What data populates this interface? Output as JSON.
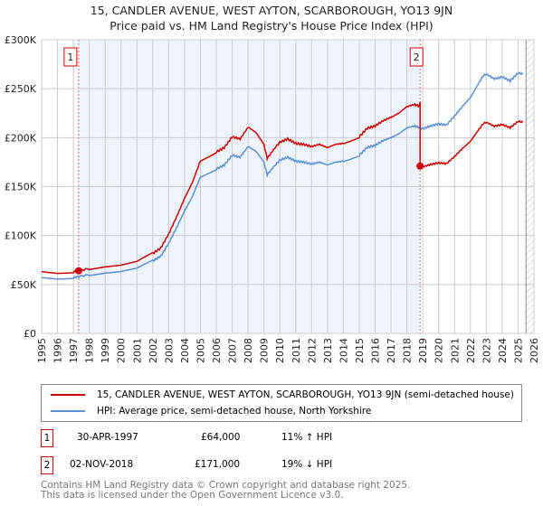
{
  "chart_data": {
    "type": "line",
    "title": "15, CANDLER AVENUE, WEST AYTON, SCARBOROUGH, YO13 9JN",
    "subtitle": "Price paid vs. HM Land Registry's House Price Index (HPI)",
    "xlim": [
      1995,
      2026
    ],
    "ylim": [
      0,
      300000
    ],
    "x_ticks": [
      "1995",
      "1996",
      "1997",
      "1998",
      "1999",
      "2000",
      "2001",
      "2002",
      "2003",
      "2004",
      "2005",
      "2006",
      "2007",
      "2008",
      "2009",
      "2010",
      "2011",
      "2012",
      "2013",
      "2014",
      "2015",
      "2016",
      "2017",
      "2018",
      "2019",
      "2020",
      "2021",
      "2022",
      "2023",
      "2024",
      "2025",
      "2026"
    ],
    "y_ticks": [
      {
        "v": 0,
        "label": "£0"
      },
      {
        "v": 50000,
        "label": "£50K"
      },
      {
        "v": 100000,
        "label": "£100K"
      },
      {
        "v": 150000,
        "label": "£150K"
      },
      {
        "v": 200000,
        "label": "£200K"
      },
      {
        "v": 250000,
        "label": "£250K"
      },
      {
        "v": 300000,
        "label": "£300K"
      }
    ],
    "grid": true,
    "hpi_series": {
      "name": "HPI: Average price, semi-detached house, North Yorkshire",
      "color": "#5b8fd4",
      "x": [
        1995,
        1996,
        1997,
        1997.33,
        1998,
        1999,
        2000,
        2001,
        2002,
        2002.5,
        2003,
        2003.5,
        2004,
        2004.5,
        2005,
        2006,
        2006.5,
        2007,
        2007.5,
        2008,
        2008.5,
        2009,
        2009.2,
        2009.7,
        2010,
        2010.5,
        2011,
        2011.5,
        2012,
        2012.5,
        2013,
        2013.5,
        2014,
        2015,
        2015.5,
        2016,
        2016.5,
        2017,
        2017.5,
        2018,
        2018.5,
        2018.83,
        2019,
        2019.5,
        2020,
        2020.5,
        2021,
        2021.5,
        2022,
        2022.5,
        2022.8,
        2023,
        2023.5,
        2024,
        2024.5,
        2025,
        2025.3
      ],
      "y": [
        57000,
        56000,
        57000,
        58000,
        60000,
        62000,
        63000,
        66000,
        74000,
        79000,
        92000,
        108000,
        125000,
        140000,
        160000,
        168000,
        172000,
        182000,
        180000,
        191000,
        186000,
        175000,
        162000,
        172000,
        177000,
        180000,
        176000,
        175000,
        173000,
        175000,
        172000,
        175000,
        176000,
        182000,
        190000,
        192000,
        197000,
        200000,
        204000,
        210000,
        212000,
        210000,
        209000,
        212000,
        214000,
        213000,
        222000,
        232000,
        241000,
        255000,
        263000,
        265000,
        260000,
        262000,
        258000,
        266000,
        265000
      ]
    },
    "price_series": {
      "name": "15, CANDLER AVENUE, WEST AYTON, SCARBOROUGH, YO13 9JN (semi-detached house)",
      "color": "#cc0000"
    },
    "sales": [
      {
        "id": "1",
        "x": 1997.33,
        "price": 64000
      },
      {
        "id": "2",
        "x": 2018.83,
        "price": 171000
      }
    ],
    "forecast_from": 2025.5
  },
  "legend": {
    "property": "15, CANDLER AVENUE, WEST AYTON, SCARBOROUGH, YO13 9JN (semi-detached house)",
    "hpi": "HPI: Average price, semi-detached house, North Yorkshire"
  },
  "transactions": [
    {
      "id": "1",
      "date": "30-APR-1997",
      "price": "£64,000",
      "delta": "11% ↑ HPI"
    },
    {
      "id": "2",
      "date": "02-NOV-2018",
      "price": "£171,000",
      "delta": "19% ↓ HPI"
    }
  ],
  "footer": {
    "line1": "Contains HM Land Registry data © Crown copyright and database right 2025.",
    "line2": "This data is licensed under the Open Government Licence v3.0."
  }
}
